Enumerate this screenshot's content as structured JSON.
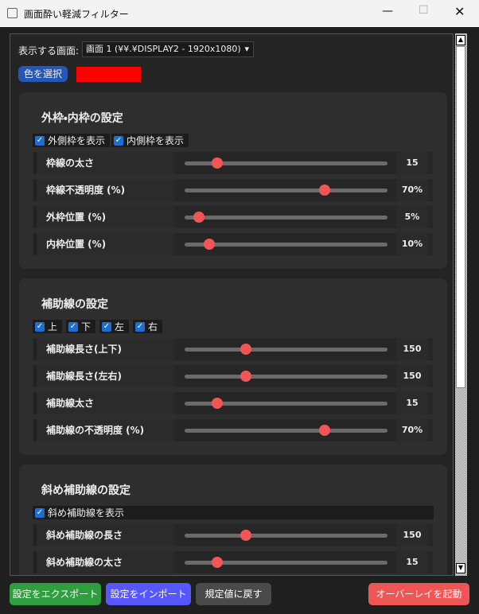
{
  "window": {
    "title": "画面酔い軽減フィルター"
  },
  "display": {
    "label": "表示する画面:",
    "selected": "画面 1 (¥¥.¥DISPLAY2 - 1920x1080)"
  },
  "color_button": "色を選択",
  "sections": [
    {
      "title": "外枠・内枠の設定",
      "checkboxes": [
        "外側枠を表示",
        "内側枠を表示"
      ],
      "sliders": [
        {
          "label": "枠線の太さ",
          "value": "15"
        },
        {
          "label": "枠線不透明度 (%)",
          "value": "70%"
        },
        {
          "label": "外枠位置 (%)",
          "value": "5%"
        },
        {
          "label": "内枠位置 (%)",
          "value": "10%"
        }
      ]
    },
    {
      "title": "補助線の設定",
      "checkboxes": [
        "上",
        "下",
        "左",
        "右"
      ],
      "sliders": [
        {
          "label": "補助線長さ(上下)",
          "value": "150"
        },
        {
          "label": "補助線長さ(左右)",
          "value": "150"
        },
        {
          "label": "補助線太さ",
          "value": "15"
        },
        {
          "label": "補助線の不透明度 (%)",
          "value": "70%"
        }
      ]
    },
    {
      "title": "斜め補助線の設定",
      "checkboxes": [
        "斜め補助線を表示"
      ],
      "sliders": [
        {
          "label": "斜め補助線の長さ",
          "value": "150"
        },
        {
          "label": "斜め補助線の太さ",
          "value": "15"
        }
      ]
    }
  ],
  "buttons": [
    "設定をエクスポート",
    "設定をインポート",
    "規定値に戻す",
    "オーバーレイを起動"
  ]
}
